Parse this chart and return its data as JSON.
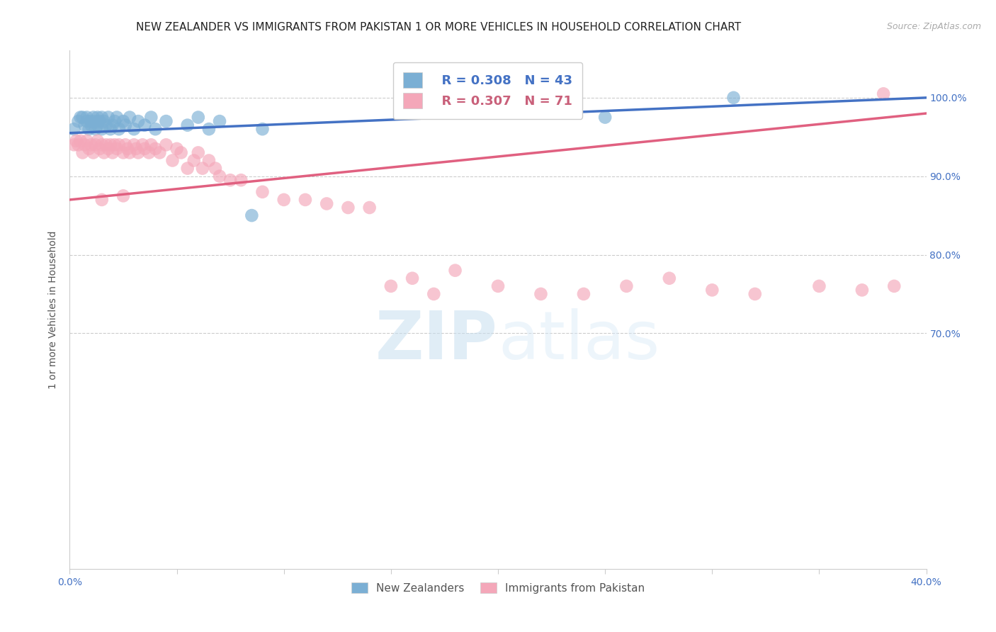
{
  "title": "NEW ZEALANDER VS IMMIGRANTS FROM PAKISTAN 1 OR MORE VEHICLES IN HOUSEHOLD CORRELATION CHART",
  "source": "Source: ZipAtlas.com",
  "ylabel": "1 or more Vehicles in Household",
  "xlim": [
    0.0,
    0.4
  ],
  "ylim": [
    0.4,
    1.06
  ],
  "xtick_positions": [
    0.0,
    0.05,
    0.1,
    0.15,
    0.2,
    0.25,
    0.3,
    0.35,
    0.4
  ],
  "xticklabels": [
    "0.0%",
    "",
    "",
    "",
    "",
    "",
    "",
    "",
    "40.0%"
  ],
  "ytick_positions": [
    0.7,
    0.8,
    0.9,
    1.0
  ],
  "yticklabels_right": [
    "70.0%",
    "80.0%",
    "90.0%",
    "100.0%"
  ],
  "blue_color": "#7bafd4",
  "pink_color": "#f4a7b9",
  "blue_line_color": "#4472c4",
  "pink_line_color": "#e06080",
  "legend_R_blue": "R = 0.308",
  "legend_N_blue": "N = 43",
  "legend_R_pink": "R = 0.307",
  "legend_N_pink": "N = 71",
  "blue_scatter_x": [
    0.002,
    0.004,
    0.005,
    0.006,
    0.007,
    0.008,
    0.008,
    0.009,
    0.01,
    0.01,
    0.011,
    0.012,
    0.012,
    0.013,
    0.013,
    0.014,
    0.015,
    0.015,
    0.016,
    0.017,
    0.018,
    0.019,
    0.02,
    0.021,
    0.022,
    0.023,
    0.025,
    0.026,
    0.028,
    0.03,
    0.032,
    0.035,
    0.038,
    0.04,
    0.045,
    0.055,
    0.06,
    0.065,
    0.07,
    0.085,
    0.09,
    0.25,
    0.31
  ],
  "blue_scatter_y": [
    0.96,
    0.97,
    0.975,
    0.975,
    0.965,
    0.97,
    0.975,
    0.96,
    0.97,
    0.965,
    0.975,
    0.96,
    0.97,
    0.965,
    0.975,
    0.97,
    0.96,
    0.975,
    0.97,
    0.965,
    0.975,
    0.96,
    0.965,
    0.97,
    0.975,
    0.96,
    0.97,
    0.965,
    0.975,
    0.96,
    0.97,
    0.965,
    0.975,
    0.96,
    0.97,
    0.965,
    0.975,
    0.96,
    0.97,
    0.85,
    0.96,
    0.975,
    1.0
  ],
  "pink_scatter_x": [
    0.002,
    0.003,
    0.004,
    0.005,
    0.006,
    0.007,
    0.008,
    0.009,
    0.01,
    0.011,
    0.012,
    0.013,
    0.014,
    0.015,
    0.016,
    0.017,
    0.018,
    0.019,
    0.02,
    0.021,
    0.022,
    0.023,
    0.025,
    0.026,
    0.027,
    0.028,
    0.03,
    0.031,
    0.032,
    0.034,
    0.035,
    0.037,
    0.038,
    0.04,
    0.042,
    0.045,
    0.048,
    0.05,
    0.052,
    0.055,
    0.058,
    0.06,
    0.062,
    0.065,
    0.068,
    0.07,
    0.075,
    0.08,
    0.09,
    0.1,
    0.11,
    0.12,
    0.13,
    0.14,
    0.15,
    0.16,
    0.17,
    0.18,
    0.2,
    0.22,
    0.24,
    0.26,
    0.28,
    0.3,
    0.32,
    0.35,
    0.37,
    0.385,
    0.015,
    0.025,
    0.38
  ],
  "pink_scatter_y": [
    0.94,
    0.945,
    0.94,
    0.945,
    0.93,
    0.94,
    0.945,
    0.935,
    0.94,
    0.93,
    0.94,
    0.945,
    0.935,
    0.94,
    0.93,
    0.94,
    0.935,
    0.94,
    0.93,
    0.94,
    0.935,
    0.94,
    0.93,
    0.94,
    0.935,
    0.93,
    0.94,
    0.935,
    0.93,
    0.94,
    0.935,
    0.93,
    0.94,
    0.935,
    0.93,
    0.94,
    0.92,
    0.935,
    0.93,
    0.91,
    0.92,
    0.93,
    0.91,
    0.92,
    0.91,
    0.9,
    0.895,
    0.895,
    0.88,
    0.87,
    0.87,
    0.865,
    0.86,
    0.86,
    0.76,
    0.77,
    0.75,
    0.78,
    0.76,
    0.75,
    0.75,
    0.76,
    0.77,
    0.755,
    0.75,
    0.76,
    0.755,
    0.76,
    0.87,
    0.875,
    1.005
  ],
  "blue_line_x": [
    0.0,
    0.4
  ],
  "blue_line_y": [
    0.955,
    1.0
  ],
  "pink_line_x": [
    0.0,
    0.4
  ],
  "pink_line_y": [
    0.87,
    0.98
  ],
  "watermark_zip": "ZIP",
  "watermark_atlas": "atlas",
  "background_color": "#ffffff",
  "grid_color": "#cccccc",
  "title_fontsize": 11,
  "axis_label_fontsize": 10,
  "tick_fontsize": 10,
  "legend_fontsize": 13,
  "source_fontsize": 9
}
